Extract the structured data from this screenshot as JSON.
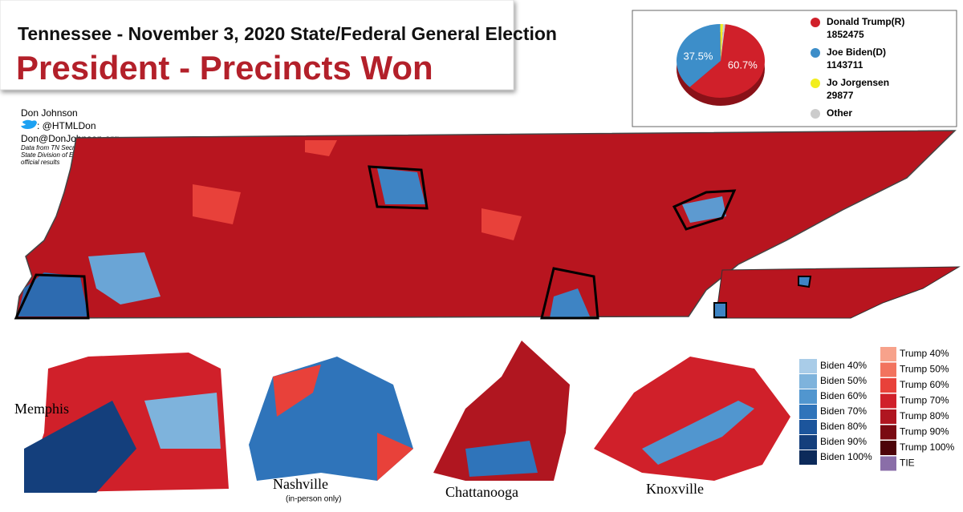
{
  "header": {
    "title": "Tennessee - November 3, 2020 State/Federal General Election",
    "subtitle": "President - Precincts Won"
  },
  "credits": {
    "author": "Don Johnson",
    "twitter": ": @HTMLDon",
    "email": "Don@DonJohnson.org",
    "source": "Data from TN Secretary of State Division of Elections official results"
  },
  "pie": {
    "type": "pie",
    "values": [
      60.7,
      37.5,
      1.0,
      0.8
    ],
    "value_labels": [
      "60.7%",
      "37.5%",
      null,
      null
    ],
    "colors": [
      "#d0202a",
      "#3d8ec9",
      "#f2ee1e",
      "#cccccc"
    ]
  },
  "legend": [
    {
      "name": "Donald Trump(R)",
      "votes": "1852475"
    },
    {
      "name": "Joe Biden(D)",
      "votes": "1143711"
    },
    {
      "name": "Jo Jorgensen",
      "votes": "29877"
    },
    {
      "name": "Other",
      "votes": null
    }
  ],
  "insets": {
    "memphis": "Memphis",
    "nashville": "Nashville",
    "nashville_note": "(in-person only)",
    "chattanooga": "Chattanooga",
    "knoxville": "Knoxville"
  },
  "color_key": {
    "biden": [
      {
        "label": "Biden 40%",
        "color": "#a9cce8"
      },
      {
        "label": "Biden 50%",
        "color": "#7eb3dc"
      },
      {
        "label": "Biden 60%",
        "color": "#5196cf"
      },
      {
        "label": "Biden 70%",
        "color": "#2f74ba"
      },
      {
        "label": "Biden 80%",
        "color": "#1c559c"
      },
      {
        "label": "Biden 90%",
        "color": "#143f7c"
      },
      {
        "label": "Biden 100%",
        "color": "#0c2a5a"
      }
    ],
    "trump": [
      {
        "label": "Trump 40%",
        "color": "#f7a28b"
      },
      {
        "label": "Trump 50%",
        "color": "#f2735e"
      },
      {
        "label": "Trump 60%",
        "color": "#e8413a"
      },
      {
        "label": "Trump 70%",
        "color": "#d0202a"
      },
      {
        "label": "Trump 80%",
        "color": "#b01620"
      },
      {
        "label": "Trump 90%",
        "color": "#7a0a12"
      },
      {
        "label": "Trump 100%",
        "color": "#4d0409"
      },
      {
        "label": "TIE",
        "color": "#8a6ea8"
      }
    ]
  }
}
